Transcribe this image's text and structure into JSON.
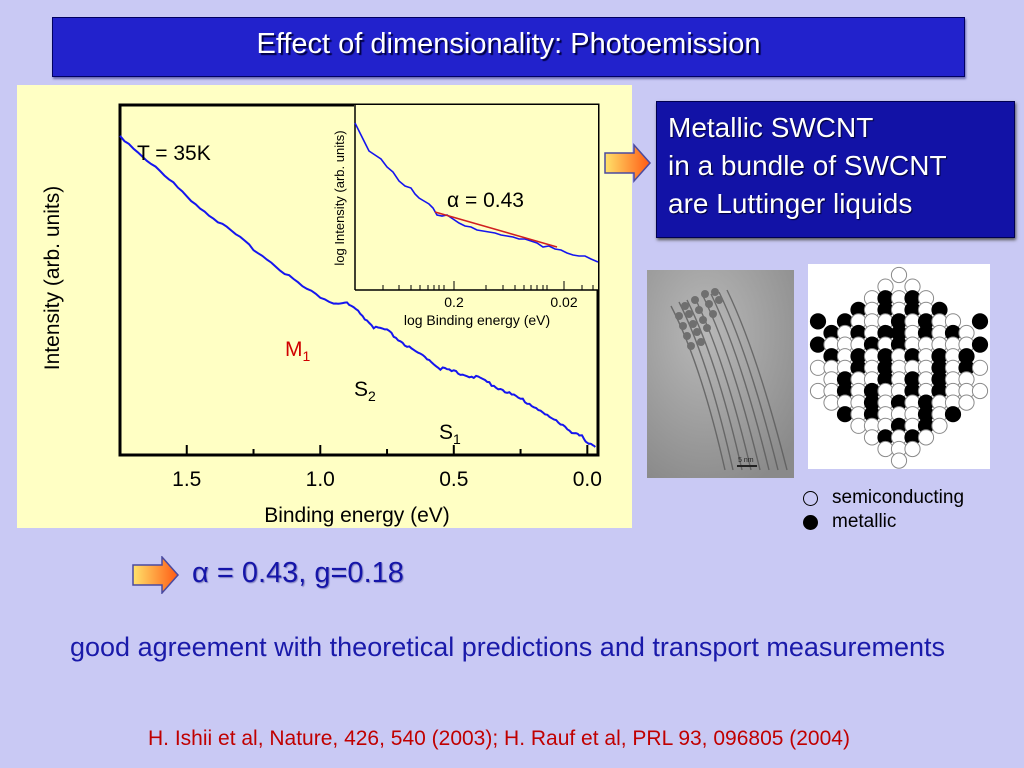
{
  "title": "Effect of dimensionality: Photoemission",
  "main_plot": {
    "temperature": "T = 35K",
    "xlabel": "Binding energy (eV)",
    "ylabel": "Intensity (arb. units)",
    "x_ticks": [
      "1.5",
      "1.0",
      "0.5",
      "0.0"
    ],
    "peaks": {
      "m": "M",
      "m_sub": "1",
      "s2": "S",
      "s2_sub": "2",
      "s1": "S",
      "s1_sub": "1"
    }
  },
  "inset": {
    "ylabel": "log Intensity (arb. units)",
    "xlabel": "log Binding energy (eV)",
    "x_ticks": [
      "0.2",
      "0.02"
    ],
    "fit_label": "α = 0.43"
  },
  "callout": {
    "line1": "Metallic SWCNT",
    "line2": "in a bundle of SWCNT",
    "line3": "are Luttinger liquids"
  },
  "tem_image": {
    "scale_label": "5 nm"
  },
  "legend": {
    "open": "semiconducting",
    "filled": "metallic"
  },
  "result": "α = 0.43, g=0.18",
  "summary": "good agreement with theoretical predictions and transport measurements",
  "reference": "H. Ishii et al, Nature, 426, 540 (2003); H. Rauf et al, PRL 93, 096805 (2004)",
  "colors": {
    "title_bg": "#2222cc",
    "callout_bg": "#1212a6",
    "curve": "#1515ee",
    "fit": "#d02020",
    "accent_red": "#d00000",
    "body_text": "#1a1aaa",
    "page_bg": "#c9c9f4",
    "plot_bg": "#ffffc4"
  },
  "chart_data": {
    "type": "line",
    "xlabel": "Binding energy (eV)",
    "ylabel": "Intensity (arb. units)",
    "xlim": [
      1.75,
      -0.04
    ],
    "x_ticks": [
      1.5,
      1.0,
      0.5,
      0.0
    ],
    "series": [
      {
        "x": [
          1.75,
          1.65,
          1.55,
          1.45,
          1.35,
          1.25,
          1.15,
          1.05,
          0.95,
          0.9,
          0.85,
          0.8,
          0.75,
          0.7,
          0.65,
          0.6,
          0.55,
          0.5,
          0.45,
          0.4,
          0.35,
          0.3,
          0.25,
          0.2,
          0.15,
          0.1,
          0.05,
          0.02,
          0.0,
          -0.03
        ],
        "y": [
          0.91,
          0.84,
          0.77,
          0.7,
          0.64,
          0.58,
          0.52,
          0.46,
          0.42,
          0.42,
          0.39,
          0.35,
          0.34,
          0.31,
          0.28,
          0.26,
          0.23,
          0.22,
          0.21,
          0.2,
          0.18,
          0.16,
          0.14,
          0.12,
          0.09,
          0.07,
          0.04,
          0.03,
          0.015,
          0.0
        ]
      }
    ]
  }
}
